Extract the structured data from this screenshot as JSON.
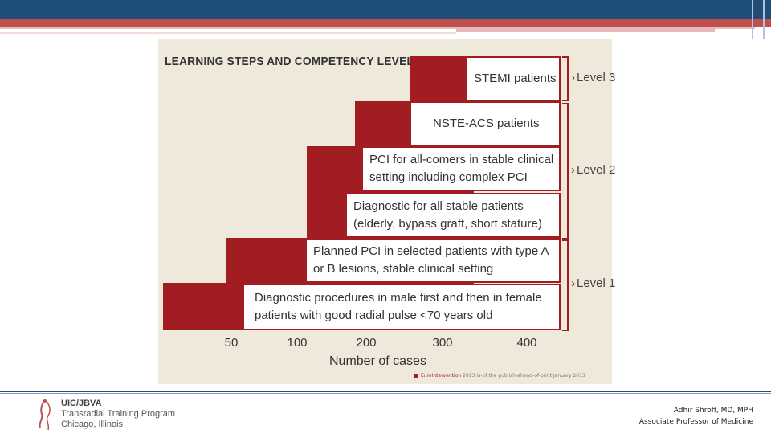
{
  "figure": {
    "title": "LEARNING STEPS AND COMPETENCY LEVELS",
    "steps": [
      "STEMI patients",
      "NSTE-ACS patients",
      [
        "PCI for all-comers in stable clinical",
        "setting including complex PCI"
      ],
      [
        "Diagnostic for all stable patients",
        "(elderly, bypass graft, short stature)"
      ],
      [
        "Planned PCI in selected patients with type A",
        "or B lesions, stable clinical setting"
      ],
      [
        "Diagnostic procedures in male first and then in female",
        "patients with good radial pulse <70 years old"
      ]
    ],
    "levels": [
      "Level 3",
      "Level 2",
      "Level 1"
    ],
    "x_ticks": [
      "50",
      "100",
      "200",
      "300",
      "400"
    ],
    "x_label": "Number of cases",
    "source": {
      "brand": "EuroIntervention",
      "year": "2013",
      "rest": "ia-of the publish-ahead-of-print January 2013"
    }
  },
  "footer": {
    "logo_lines": [
      "UIC/JBVA",
      "Transradial Training Program",
      "Chicago, Illinois"
    ],
    "author_name": "Adhir Shroff, MD, MPH",
    "author_title": "Associate Professor of Medicine"
  },
  "colors": {
    "navy": "#1f4e79",
    "red": "#c0504d",
    "step_red": "#a21d22"
  }
}
